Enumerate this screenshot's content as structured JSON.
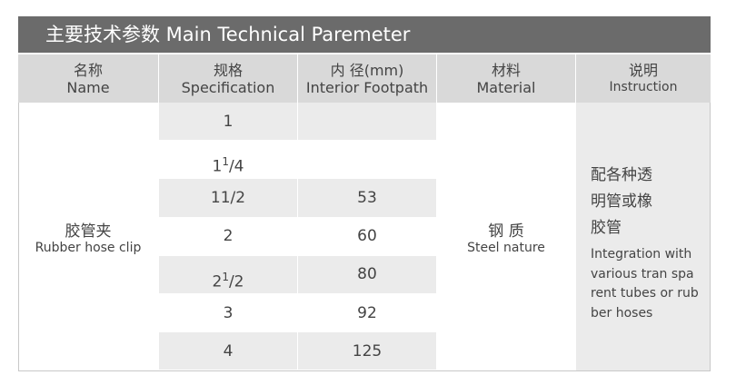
{
  "header": {
    "title": "主要技术参数 Main Technical Paremeter"
  },
  "table": {
    "columns": [
      {
        "zh": "名称",
        "en": "Name"
      },
      {
        "zh": "规格",
        "en": "Specification"
      },
      {
        "zh": "内 径(mm)",
        "en": "Interior Footpath"
      },
      {
        "zh": "材料",
        "en": "Material"
      },
      {
        "zh": "说明",
        "en": "Instruction"
      }
    ],
    "name": {
      "zh": "胶管夹",
      "en": "Rubber hose clip"
    },
    "specifications": [
      "1",
      {
        "whole": "1",
        "numerator": "1",
        "denominator": "/4"
      },
      "11/2",
      "2",
      {
        "whole": "2",
        "numerator": "1",
        "denominator": "/2"
      },
      "3",
      "4"
    ],
    "interior_footpath": [
      null,
      null,
      "53",
      "60",
      "80",
      "92",
      "125"
    ],
    "material": {
      "zh": "钢 质",
      "en": "Steel nature"
    },
    "instruction": {
      "zh": [
        "配各种透",
        "明管或橡",
        "胶管"
      ],
      "en": [
        "Integration with",
        "various tran spa",
        "rent tubes or rub",
        "ber hoses"
      ]
    }
  }
}
